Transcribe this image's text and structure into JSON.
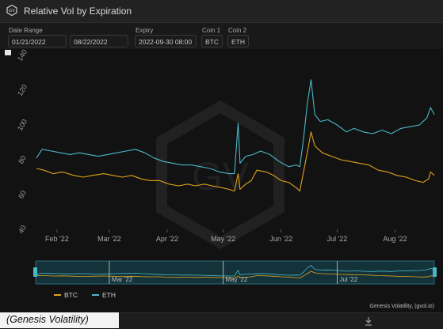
{
  "window": {
    "title": "Relative Vol by Expiration",
    "logo_text": "GV"
  },
  "controls": {
    "date_range": {
      "label": "Date Range",
      "start": "01/21/2022",
      "end": "08/22/2022"
    },
    "expiry": {
      "label": "Expiry",
      "value": "2022-09-30 08:00"
    },
    "coin1": {
      "label": "Coin 1",
      "value": "BTC"
    },
    "coin2": {
      "label": "Coin 2",
      "value": "ETH"
    }
  },
  "footer": {
    "caption": "(Genesis Volatility)",
    "credit": "Genesis Volatility, (gvol.io)"
  },
  "icons": {
    "logo": "gv-logo-icon",
    "download": "download-icon",
    "watermark": "gv-watermark"
  },
  "colors": {
    "btc": "#e0a21a",
    "eth": "#4ab8c8",
    "background": "#121212"
  },
  "chart_data": {
    "type": "line",
    "title": "Relative Vol by Expiration",
    "xlabel": "",
    "ylabel": "",
    "ylim": [
      40,
      140
    ],
    "yticks": [
      "40",
      "60",
      "80",
      "100",
      "120",
      "140"
    ],
    "xticks": [
      "Feb '22",
      "Mar '22",
      "Apr '22",
      "May '22",
      "Jun '22",
      "Jul '22",
      "Aug '22"
    ],
    "navigator_ticks": [
      "Mar '22",
      "May '22",
      "Jul '22"
    ],
    "xlim": [
      "2022-01-21",
      "2022-08-22"
    ],
    "legend": {
      "position": "bottom-left",
      "entries": [
        "BTC",
        "ETH"
      ]
    },
    "grid": false,
    "series": [
      {
        "name": "BTC",
        "color": "#e0a21a",
        "points": [
          [
            "2022-01-21",
            75
          ],
          [
            "2022-01-25",
            74
          ],
          [
            "2022-01-30",
            72
          ],
          [
            "2022-02-04",
            73
          ],
          [
            "2022-02-10",
            71
          ],
          [
            "2022-02-15",
            70
          ],
          [
            "2022-02-20",
            71
          ],
          [
            "2022-02-26",
            72
          ],
          [
            "2022-03-03",
            71
          ],
          [
            "2022-03-08",
            70
          ],
          [
            "2022-03-13",
            71
          ],
          [
            "2022-03-18",
            69
          ],
          [
            "2022-03-23",
            68
          ],
          [
            "2022-03-28",
            68
          ],
          [
            "2022-04-02",
            66
          ],
          [
            "2022-04-07",
            65
          ],
          [
            "2022-04-12",
            66
          ],
          [
            "2022-04-16",
            65
          ],
          [
            "2022-04-21",
            66
          ],
          [
            "2022-04-25",
            65
          ],
          [
            "2022-04-30",
            64
          ],
          [
            "2022-05-04",
            63
          ],
          [
            "2022-05-07",
            62
          ],
          [
            "2022-05-09",
            72
          ],
          [
            "2022-05-10",
            63
          ],
          [
            "2022-05-13",
            66
          ],
          [
            "2022-05-16",
            68
          ],
          [
            "2022-05-19",
            74
          ],
          [
            "2022-05-24",
            73
          ],
          [
            "2022-05-28",
            71
          ],
          [
            "2022-06-01",
            68
          ],
          [
            "2022-06-05",
            67
          ],
          [
            "2022-06-09",
            64
          ],
          [
            "2022-06-11",
            62
          ],
          [
            "2022-06-13",
            73
          ],
          [
            "2022-06-15",
            84
          ],
          [
            "2022-06-17",
            96
          ],
          [
            "2022-06-19",
            88
          ],
          [
            "2022-06-23",
            84
          ],
          [
            "2022-06-28",
            82
          ],
          [
            "2022-07-03",
            80
          ],
          [
            "2022-07-08",
            79
          ],
          [
            "2022-07-13",
            78
          ],
          [
            "2022-07-18",
            77
          ],
          [
            "2022-07-23",
            74
          ],
          [
            "2022-07-28",
            73
          ],
          [
            "2022-08-02",
            71
          ],
          [
            "2022-08-07",
            70
          ],
          [
            "2022-08-12",
            68
          ],
          [
            "2022-08-16",
            67
          ],
          [
            "2022-08-19",
            69
          ],
          [
            "2022-08-20",
            73
          ],
          [
            "2022-08-22",
            71
          ]
        ]
      },
      {
        "name": "ETH",
        "color": "#4ab8c8",
        "points": [
          [
            "2022-01-21",
            81
          ],
          [
            "2022-01-24",
            86
          ],
          [
            "2022-01-29",
            85
          ],
          [
            "2022-02-03",
            84
          ],
          [
            "2022-02-08",
            83
          ],
          [
            "2022-02-13",
            84
          ],
          [
            "2022-02-18",
            83
          ],
          [
            "2022-02-23",
            82
          ],
          [
            "2022-02-28",
            83
          ],
          [
            "2022-03-05",
            84
          ],
          [
            "2022-03-10",
            85
          ],
          [
            "2022-03-15",
            86
          ],
          [
            "2022-03-20",
            84
          ],
          [
            "2022-03-25",
            81
          ],
          [
            "2022-03-30",
            79
          ],
          [
            "2022-04-04",
            78
          ],
          [
            "2022-04-09",
            77
          ],
          [
            "2022-04-14",
            77
          ],
          [
            "2022-04-19",
            76
          ],
          [
            "2022-04-24",
            75
          ],
          [
            "2022-04-29",
            73
          ],
          [
            "2022-05-04",
            72
          ],
          [
            "2022-05-07",
            72
          ],
          [
            "2022-05-09",
            101
          ],
          [
            "2022-05-10",
            78
          ],
          [
            "2022-05-13",
            82
          ],
          [
            "2022-05-17",
            83
          ],
          [
            "2022-05-21",
            85
          ],
          [
            "2022-05-26",
            83
          ],
          [
            "2022-05-31",
            79
          ],
          [
            "2022-06-05",
            76
          ],
          [
            "2022-06-09",
            77
          ],
          [
            "2022-06-11",
            76
          ],
          [
            "2022-06-13",
            92
          ],
          [
            "2022-06-15",
            112
          ],
          [
            "2022-06-17",
            126
          ],
          [
            "2022-06-19",
            106
          ],
          [
            "2022-06-22",
            102
          ],
          [
            "2022-06-26",
            103
          ],
          [
            "2022-07-01",
            100
          ],
          [
            "2022-07-06",
            96
          ],
          [
            "2022-07-10",
            98
          ],
          [
            "2022-07-15",
            96
          ],
          [
            "2022-07-20",
            95
          ],
          [
            "2022-07-25",
            97
          ],
          [
            "2022-07-30",
            95
          ],
          [
            "2022-08-04",
            98
          ],
          [
            "2022-08-09",
            99
          ],
          [
            "2022-08-14",
            100
          ],
          [
            "2022-08-18",
            104
          ],
          [
            "2022-08-20",
            110
          ],
          [
            "2022-08-22",
            106
          ]
        ]
      }
    ]
  }
}
